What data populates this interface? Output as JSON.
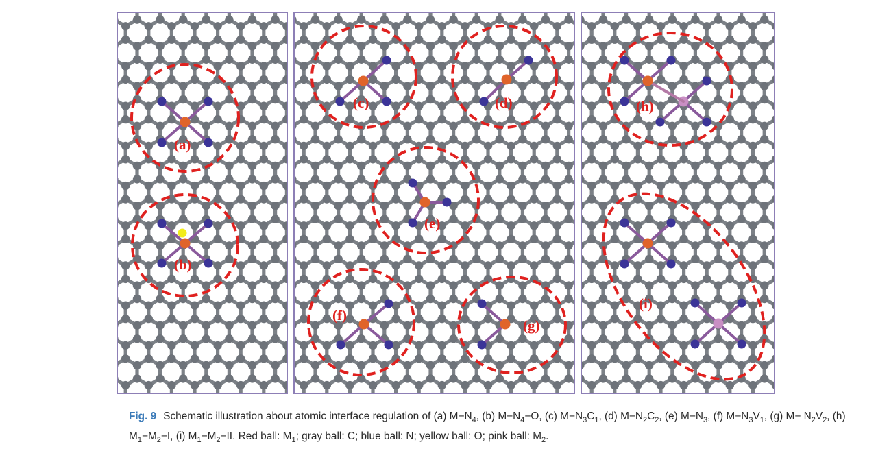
{
  "panels": [
    {
      "id": "left",
      "regions": [
        {
          "label": "(a)"
        },
        {
          "label": "(b)"
        }
      ]
    },
    {
      "id": "middle",
      "regions": [
        {
          "label": "(c)"
        },
        {
          "label": "(d)"
        },
        {
          "label": "(e)"
        },
        {
          "label": "(f)"
        },
        {
          "label": "(g)"
        }
      ]
    },
    {
      "id": "right",
      "regions": [
        {
          "label": "(h)"
        },
        {
          "label": "(i)"
        }
      ]
    }
  ],
  "colors": {
    "carbon": "#6e737a",
    "carbon_bond": "#7c8187",
    "nitrogen": "#3b3498",
    "metal1": "#e0642a",
    "metal2": "#c98fc4",
    "oxygen": "#f2ec1c",
    "circle": "#e0211f",
    "frame": "#8d7fb6"
  },
  "caption": {
    "fig_no": "Fig. 9",
    "html": "Schematic illustration about atomic interface regulation of (a) M&minus;N<sub>4</sub>, (b) M&minus;N<sub>4</sub>&minus;O, (c) M&minus;N<sub>3</sub>C<sub>1</sub>, (d) M&minus;N<sub>2</sub>C<sub>2</sub>, (e) M&minus;N<sub>3</sub>, (f) M&minus;N<sub>3</sub>V<sub>1</sub>, (g) M&minus; N<sub>2</sub>V<sub>2</sub>, (h) M<sub>1</sub>&minus;M<sub>2</sub>&minus;I, (i) M<sub>1</sub>&minus;M<sub>2</sub>&minus;II. Red ball: M<sub>1</sub>; gray ball: C; blue ball: N; yellow ball: O; pink ball: M<sub>2</sub>."
  }
}
